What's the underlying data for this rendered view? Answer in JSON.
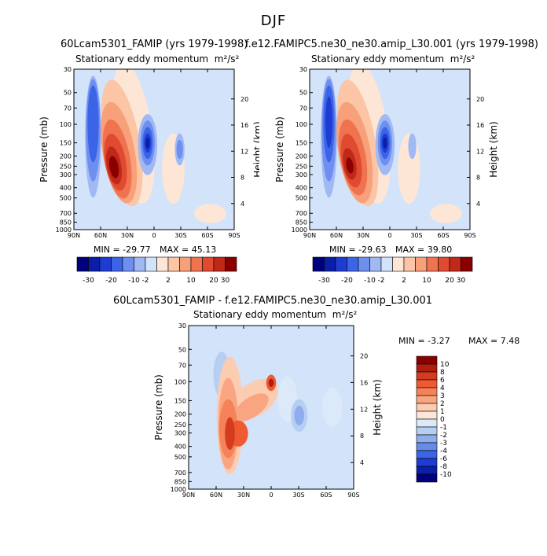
{
  "title": "DJF",
  "chart_data": [
    {
      "type": "contour",
      "name": "left-model",
      "case": "60Lcam5301_FAMIP (yrs 1979-1998)",
      "variable": "Stationary eddy momentum",
      "units": "m²/s²",
      "xlabel": "",
      "ylabel": "Pressure (mb)",
      "ylabel_right": "Height (km)",
      "x_ticks": [
        "90N",
        "60N",
        "30N",
        "0",
        "30S",
        "60S",
        "90S"
      ],
      "y_ticks": [
        "30",
        "50",
        "70",
        "100",
        "150",
        "200",
        "250",
        "300",
        "400",
        "500",
        "700",
        "850",
        "1000"
      ],
      "y_ticks_right": [
        "20",
        "16",
        "12",
        "8",
        "4"
      ],
      "min_label": "MIN = -29.77",
      "max_label": "MAX = 45.13",
      "min": -29.77,
      "max": 45.13,
      "colorbar_labels": [
        "-30",
        "-20",
        "-10",
        "-2",
        "2",
        "10",
        "20",
        "30"
      ]
    },
    {
      "type": "contour",
      "name": "right-model",
      "case": "f.e12.FAMIPC5.ne30_ne30.amip_L30.001 (yrs 1979-1998)",
      "variable": "Stationary eddy momentum",
      "units": "m²/s²",
      "xlabel": "",
      "ylabel": "Pressure (mb)",
      "ylabel_right": "Height (km)",
      "x_ticks": [
        "90N",
        "60N",
        "30N",
        "0",
        "30S",
        "60S",
        "90S"
      ],
      "y_ticks": [
        "30",
        "50",
        "70",
        "100",
        "150",
        "200",
        "250",
        "300",
        "400",
        "500",
        "700",
        "850",
        "1000"
      ],
      "y_ticks_right": [
        "20",
        "16",
        "12",
        "8",
        "4"
      ],
      "min_label": "MIN = -29.63",
      "max_label": "MAX = 39.80",
      "min": -29.63,
      "max": 39.8,
      "colorbar_labels": [
        "-30",
        "-20",
        "-10",
        "-2",
        "2",
        "10",
        "20",
        "30"
      ]
    },
    {
      "type": "contour",
      "name": "difference",
      "case": "60Lcam5301_FAMIP - f.e12.FAMIPC5.ne30_ne30.amip_L30.001",
      "variable": "Stationary eddy momentum",
      "units": "m²/s²",
      "xlabel": "",
      "ylabel": "Pressure (mb)",
      "ylabel_right": "Height (km)",
      "x_ticks": [
        "90N",
        "60N",
        "30N",
        "0",
        "30S",
        "60S",
        "90S"
      ],
      "y_ticks": [
        "30",
        "50",
        "70",
        "100",
        "150",
        "200",
        "250",
        "300",
        "400",
        "500",
        "700",
        "850",
        "1000"
      ],
      "y_ticks_right": [
        "20",
        "16",
        "12",
        "8",
        "4"
      ],
      "min_label": "MIN = -3.27",
      "max_label": "MAX = 7.48",
      "min": -3.27,
      "max": 7.48,
      "colorbar_labels": [
        "10",
        "8",
        "6",
        "4",
        "3",
        "2",
        "1",
        "0",
        "-1",
        "-2",
        "-3",
        "-4",
        "-6",
        "-8",
        "-10"
      ]
    }
  ],
  "colors": {
    "model_scale": [
      "#00007f",
      "#0a1ea8",
      "#1e3cd2",
      "#3c64e6",
      "#6e8ff0",
      "#a0b9f5",
      "#d2e3fa",
      "#fde6d6",
      "#fbc5a6",
      "#f7a07a",
      "#f07350",
      "#e04a30",
      "#c02818",
      "#8a0000"
    ],
    "diff_scale": [
      "#8a0000",
      "#b01e10",
      "#d33c1e",
      "#ee5a32",
      "#f58258",
      "#f9a582",
      "#fcccb0",
      "#fbe6d8",
      "#dce9f8",
      "#b7cef3",
      "#8fadee",
      "#678ce8",
      "#3c64e6",
      "#1e3cd2",
      "#0a1ea8",
      "#00007f"
    ],
    "background_field": "#d2e3fa"
  }
}
